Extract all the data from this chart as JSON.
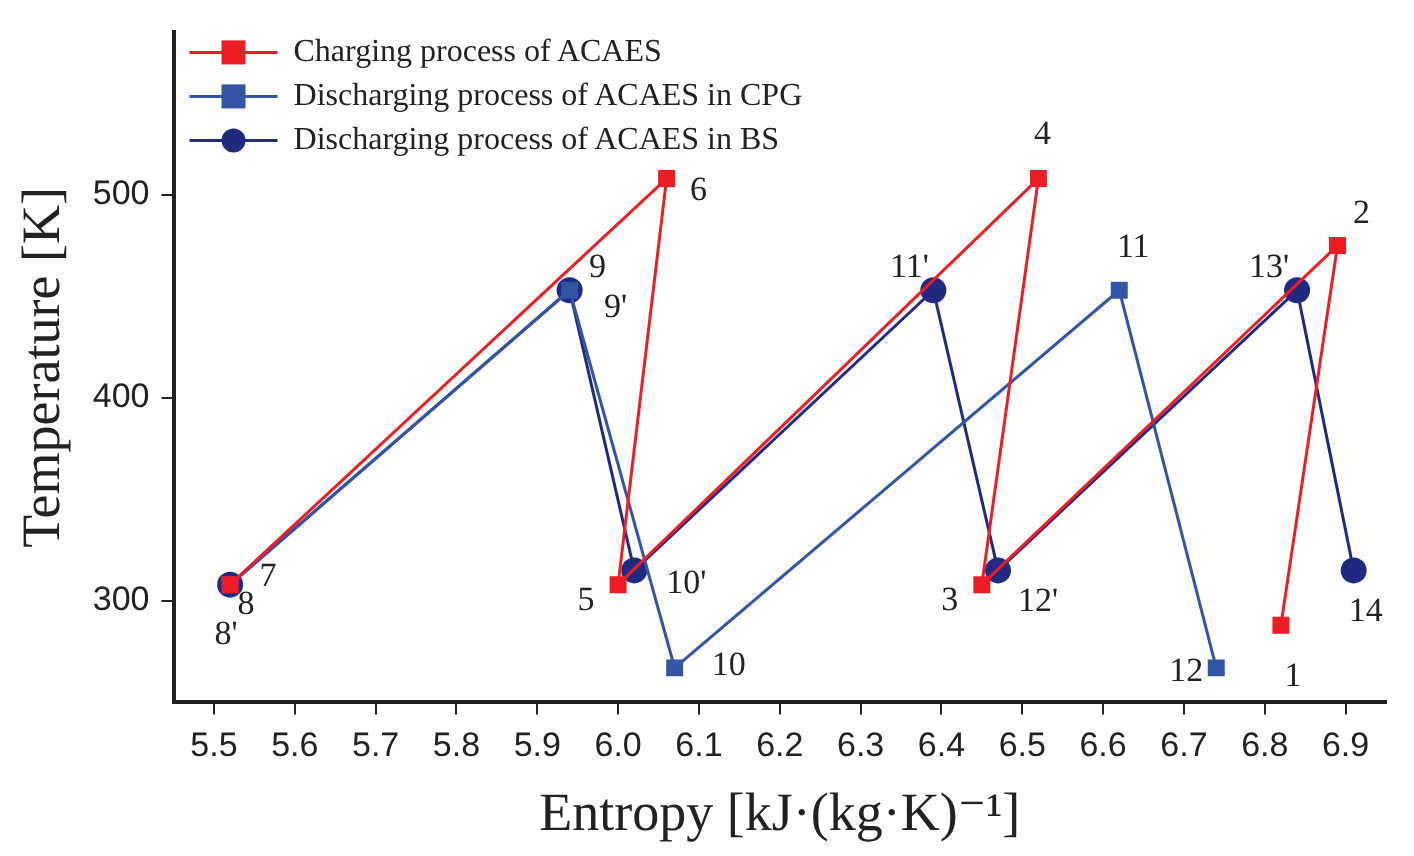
{
  "chart_data": {
    "type": "line",
    "xlabel": "Entropy [kJ·(kg·K)⁻¹]",
    "ylabel": "Temperature [K]",
    "xlim": [
      5.45,
      6.95
    ],
    "xticks": [
      5.5,
      5.6,
      5.7,
      5.8,
      5.9,
      {
        "value": 6.0,
        "label": "6.0"
      },
      6.1,
      6.2,
      6.3,
      6.4,
      6.5,
      6.6,
      6.7,
      6.8,
      6.9
    ],
    "ylim": [
      250,
      580
    ],
    "yticks": [
      300,
      400,
      500
    ],
    "grid": false,
    "legend": "top left",
    "series": [
      {
        "name": "Charging process of ACAES",
        "color": "#ee1c25",
        "marker": "square",
        "x": [
          6.82,
          6.89,
          6.45,
          6.52,
          6.0,
          6.06,
          5.52
        ],
        "values": [
          288,
          475,
          308,
          508,
          308,
          508,
          308
        ]
      },
      {
        "name": "Discharging process of ACAES in CPG",
        "color": "#3355a5",
        "marker": "square",
        "x": [
          5.52,
          5.94,
          6.07,
          6.62,
          6.74
        ],
        "values": [
          308,
          453,
          267,
          453,
          267
        ]
      },
      {
        "name": "Discharging process of ACAES in BS",
        "color": "#1f2a80",
        "marker": "circle",
        "x": [
          5.52,
          5.94,
          6.02,
          6.39,
          6.47,
          6.84,
          6.91
        ],
        "values": [
          308,
          453,
          315,
          453,
          315,
          453,
          315
        ]
      }
    ],
    "annotations": [
      {
        "text": "1",
        "x": 6.82,
        "y": 288
      },
      {
        "text": "2",
        "x": 6.89,
        "y": 475
      },
      {
        "text": "3",
        "x": 6.45,
        "y": 308
      },
      {
        "text": "4",
        "x": 6.52,
        "y": 508
      },
      {
        "text": "5",
        "x": 6.0,
        "y": 308
      },
      {
        "text": "6",
        "x": 6.06,
        "y": 508
      },
      {
        "text": "7",
        "x": 5.52,
        "y": 308
      },
      {
        "text": "8",
        "x": 5.52,
        "y": 308
      },
      {
        "text": "8'",
        "x": 5.52,
        "y": 308
      },
      {
        "text": "9",
        "x": 5.94,
        "y": 453
      },
      {
        "text": "9'",
        "x": 5.94,
        "y": 453
      },
      {
        "text": "10",
        "x": 6.07,
        "y": 267
      },
      {
        "text": "10'",
        "x": 6.02,
        "y": 315
      },
      {
        "text": "11",
        "x": 6.62,
        "y": 453
      },
      {
        "text": "11'",
        "x": 6.39,
        "y": 453
      },
      {
        "text": "12",
        "x": 6.74,
        "y": 267
      },
      {
        "text": "12'",
        "x": 6.47,
        "y": 315
      },
      {
        "text": "13'",
        "x": 6.84,
        "y": 453
      },
      {
        "text": "14",
        "x": 6.91,
        "y": 315
      }
    ]
  }
}
